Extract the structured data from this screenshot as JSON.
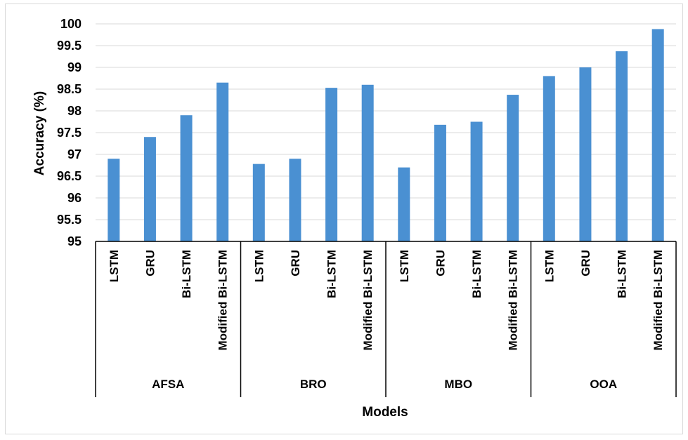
{
  "chart_data": {
    "type": "bar",
    "xlabel": "Models",
    "ylabel": "Accuracy (%)",
    "ylim": [
      95,
      100
    ],
    "yticks": [
      "95",
      "95.5",
      "96",
      "96.5",
      "97",
      "97.5",
      "98",
      "98.5",
      "99",
      "99.5",
      "100"
    ],
    "grid": true,
    "bar_color": "#4a90d2",
    "groups": [
      {
        "name": "AFSA",
        "categories": [
          "LSTM",
          "GRU",
          "Bi-LSTM",
          "Modified Bi-LSTM"
        ],
        "values": [
          96.9,
          97.4,
          97.9,
          98.65
        ]
      },
      {
        "name": "BRO",
        "categories": [
          "LSTM",
          "GRU",
          "Bi-LSTM",
          "Modified Bi-LSTM"
        ],
        "values": [
          96.78,
          96.9,
          98.53,
          98.6
        ]
      },
      {
        "name": "MBO",
        "categories": [
          "LSTM",
          "GRU",
          "Bi-LSTM",
          "Modified Bi-LSTM"
        ],
        "values": [
          96.7,
          97.68,
          97.75,
          98.37
        ]
      },
      {
        "name": "OOA",
        "categories": [
          "LSTM",
          "GRU",
          "Bi-LSTM",
          "Modified Bi-LSTM"
        ],
        "values": [
          98.8,
          99.0,
          99.37,
          99.88
        ]
      }
    ]
  }
}
